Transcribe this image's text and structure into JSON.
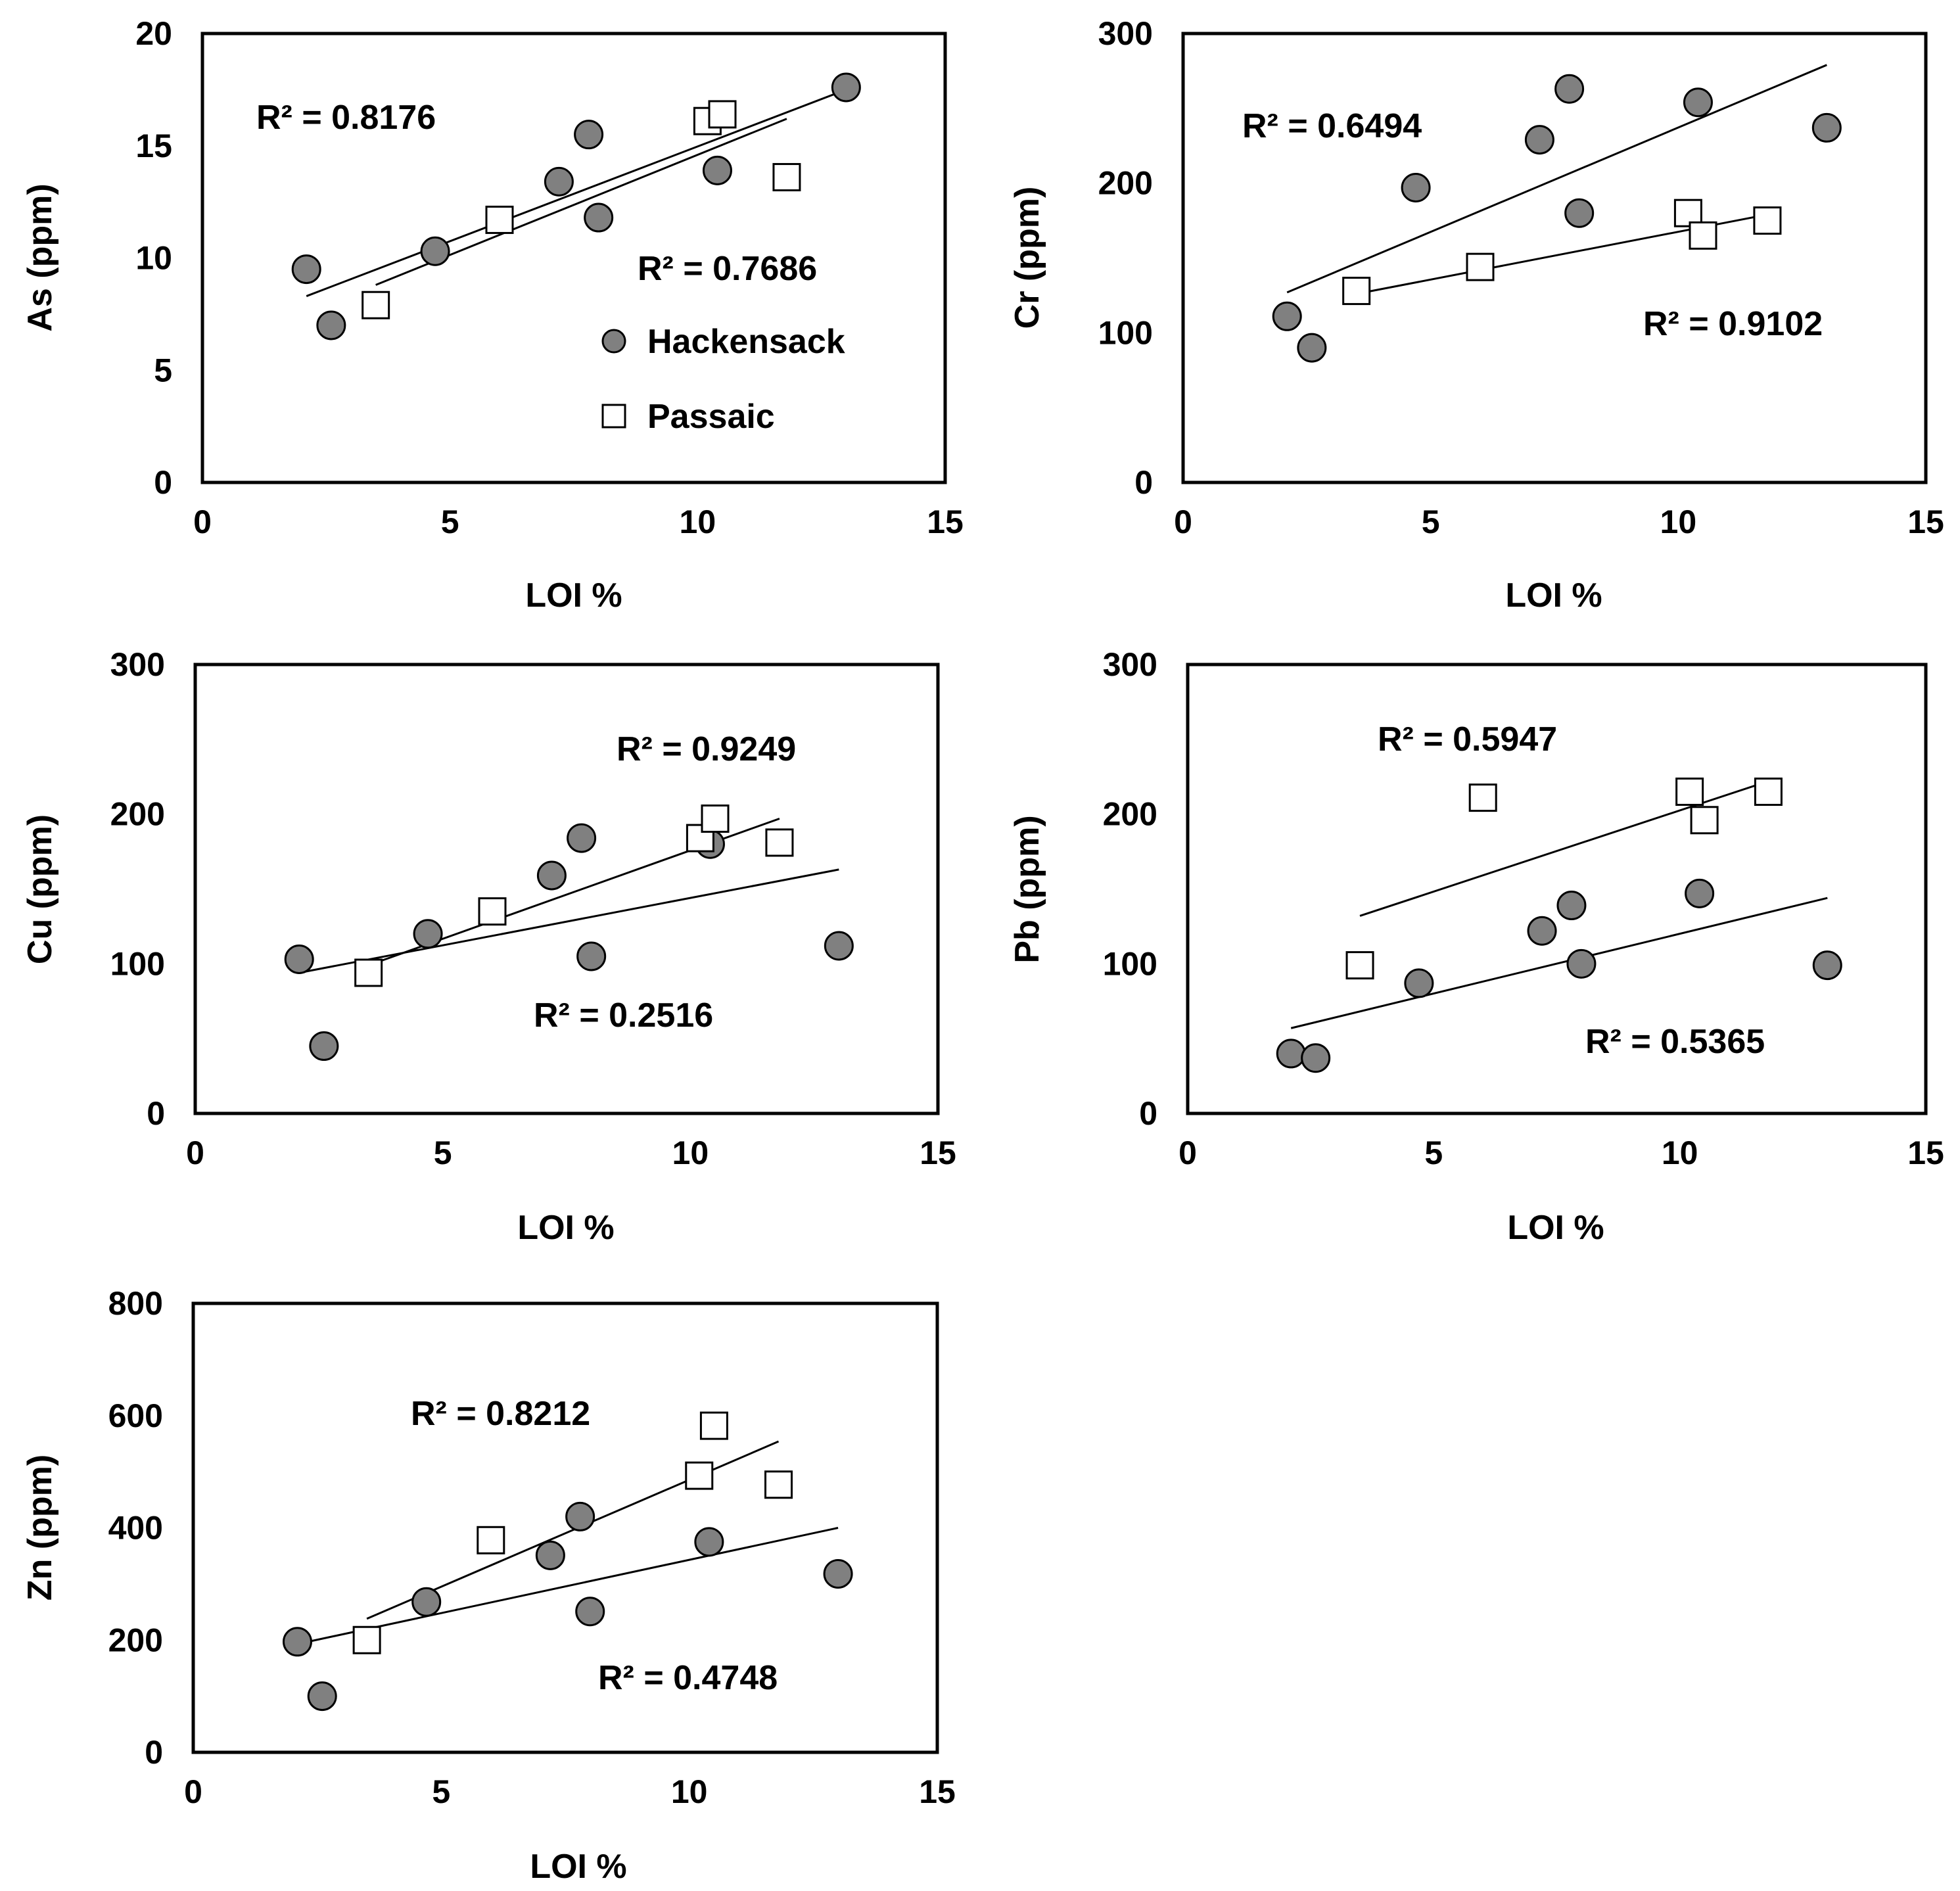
{
  "figure": {
    "series_names": [
      "Hackensack",
      "Passaic"
    ],
    "colors": {
      "hackensack_fill": "#808080",
      "passaic_fill": "#ffffff",
      "stroke": "#000000"
    }
  },
  "chart_data": [
    {
      "id": "as",
      "type": "scatter",
      "xlabel": "LOI %",
      "ylabel": "As (ppm)",
      "xlim": [
        0,
        15
      ],
      "ylim": [
        0,
        20
      ],
      "xticks": [
        "0",
        "5",
        "10",
        "15"
      ],
      "yticks": [
        "0",
        "5",
        "10",
        "15",
        "20"
      ],
      "xtick_values": [
        0,
        5,
        10,
        15
      ],
      "ytick_values": [
        0,
        5,
        10,
        15,
        20
      ],
      "legend": {
        "placement": "inside right",
        "entries": [
          "Hackensack",
          "Passaic"
        ]
      },
      "series": [
        {
          "name": "Hackensack",
          "marker": "circle",
          "x": [
            2.1,
            2.6,
            4.7,
            7.2,
            7.8,
            8.0,
            10.4,
            13.0
          ],
          "y": [
            9.5,
            7.0,
            10.3,
            13.4,
            15.5,
            11.8,
            13.9,
            17.6
          ],
          "trend": {
            "x": [
              2.1,
              13.0
            ],
            "y": [
              8.3,
              17.5
            ]
          },
          "r2": "R² = 0.8176"
        },
        {
          "name": "Passaic",
          "marker": "square",
          "x": [
            3.5,
            6.0,
            10.2,
            10.5,
            11.8
          ],
          "y": [
            7.9,
            11.7,
            16.1,
            16.4,
            13.6
          ],
          "trend": {
            "x": [
              3.5,
              11.8
            ],
            "y": [
              8.8,
              16.2
            ]
          },
          "r2": "R² = 0.7686"
        }
      ]
    },
    {
      "id": "cr",
      "type": "scatter",
      "xlabel": "LOI %",
      "ylabel": "Cr (ppm)",
      "xlim": [
        0,
        15
      ],
      "ylim": [
        0,
        300
      ],
      "xticks": [
        "0",
        "5",
        "10",
        "15"
      ],
      "yticks": [
        "0",
        "100",
        "200",
        "300"
      ],
      "xtick_values": [
        0,
        5,
        10,
        15
      ],
      "ytick_values": [
        0,
        100,
        200,
        300
      ],
      "series": [
        {
          "name": "Hackensack",
          "marker": "circle",
          "x": [
            2.1,
            2.6,
            4.7,
            7.2,
            7.8,
            8.0,
            10.4,
            13.0
          ],
          "y": [
            111,
            90,
            197,
            229,
            263,
            180,
            254,
            237
          ],
          "trend": {
            "x": [
              2.1,
              13.0
            ],
            "y": [
              127,
              279
            ]
          },
          "r2": "R² = 0.6494"
        },
        {
          "name": "Passaic",
          "marker": "square",
          "x": [
            3.5,
            6.0,
            10.2,
            10.5,
            11.8
          ],
          "y": [
            128,
            144,
            180,
            165,
            175
          ],
          "trend": {
            "x": [
              3.5,
              11.8
            ],
            "y": [
              126,
              179
            ]
          },
          "r2": "R² = 0.9102"
        }
      ]
    },
    {
      "id": "cu",
      "type": "scatter",
      "xlabel": "LOI %",
      "ylabel": "Cu (ppm)",
      "xlim": [
        0,
        15
      ],
      "ylim": [
        0,
        300
      ],
      "xticks": [
        "0",
        "5",
        "10",
        "15"
      ],
      "yticks": [
        "0",
        "100",
        "200",
        "300"
      ],
      "xtick_values": [
        0,
        5,
        10,
        15
      ],
      "ytick_values": [
        0,
        100,
        200,
        300
      ],
      "series": [
        {
          "name": "Hackensack",
          "marker": "circle",
          "x": [
            2.1,
            2.6,
            4.7,
            7.2,
            7.8,
            8.0,
            10.4,
            13.0
          ],
          "y": [
            103,
            45,
            120,
            159,
            184,
            105,
            180,
            112
          ],
          "trend": {
            "x": [
              2.1,
              13.0
            ],
            "y": [
              94,
              163
            ]
          },
          "r2": "R² = 0.2516"
        },
        {
          "name": "Passaic",
          "marker": "square",
          "x": [
            3.5,
            6.0,
            10.2,
            10.5,
            11.8
          ],
          "y": [
            94,
            135,
            184,
            197,
            181
          ],
          "trend": {
            "x": [
              3.5,
              11.8
            ],
            "y": [
              99,
              197
            ]
          },
          "r2": "R² = 0.9249"
        }
      ]
    },
    {
      "id": "pb",
      "type": "scatter",
      "xlabel": "LOI %",
      "ylabel": "Pb (ppm)",
      "xlim": [
        0,
        15
      ],
      "ylim": [
        0,
        300
      ],
      "xticks": [
        "0",
        "5",
        "10",
        "15"
      ],
      "yticks": [
        "0",
        "100",
        "200",
        "300"
      ],
      "xtick_values": [
        0,
        5,
        10,
        15
      ],
      "ytick_values": [
        0,
        100,
        200,
        300
      ],
      "series": [
        {
          "name": "Hackensack",
          "marker": "circle",
          "x": [
            2.1,
            2.6,
            4.7,
            7.2,
            7.8,
            8.0,
            10.4,
            13.0
          ],
          "y": [
            40,
            37,
            87,
            122,
            139,
            100,
            147,
            99
          ],
          "trend": {
            "x": [
              2.1,
              13.0
            ],
            "y": [
              57,
              144
            ]
          },
          "r2": "R² = 0.5365"
        },
        {
          "name": "Passaic",
          "marker": "square",
          "x": [
            3.5,
            6.0,
            10.2,
            10.5,
            11.8
          ],
          "y": [
            99,
            211,
            215,
            196,
            215
          ],
          "trend": {
            "x": [
              3.5,
              11.8
            ],
            "y": [
              132,
              222
            ]
          },
          "r2": "R² = 0.5947"
        }
      ]
    },
    {
      "id": "zn",
      "type": "scatter",
      "xlabel": "LOI %",
      "ylabel": "Zn (ppm)",
      "xlim": [
        0,
        15
      ],
      "ylim": [
        0,
        800
      ],
      "xticks": [
        "0",
        "5",
        "10",
        "15"
      ],
      "yticks": [
        "0",
        "200",
        "400",
        "600",
        "800"
      ],
      "xtick_values": [
        0,
        5,
        10,
        15
      ],
      "ytick_values": [
        0,
        200,
        400,
        600,
        800
      ],
      "series": [
        {
          "name": "Hackensack",
          "marker": "circle",
          "x": [
            2.1,
            2.6,
            4.7,
            7.2,
            7.8,
            8.0,
            10.4,
            13.0
          ],
          "y": [
            197,
            100,
            268,
            351,
            420,
            251,
            375,
            318
          ],
          "trend": {
            "x": [
              2.1,
              13.0
            ],
            "y": [
              193,
              400
            ]
          },
          "r2": "R² = 0.4748"
        },
        {
          "name": "Passaic",
          "marker": "square",
          "x": [
            3.5,
            6.0,
            10.2,
            10.5,
            11.8
          ],
          "y": [
            200,
            378,
            493,
            582,
            477
          ],
          "trend": {
            "x": [
              3.5,
              11.8
            ],
            "y": [
              238,
              554
            ]
          },
          "r2": "R² = 0.8212"
        }
      ]
    }
  ]
}
